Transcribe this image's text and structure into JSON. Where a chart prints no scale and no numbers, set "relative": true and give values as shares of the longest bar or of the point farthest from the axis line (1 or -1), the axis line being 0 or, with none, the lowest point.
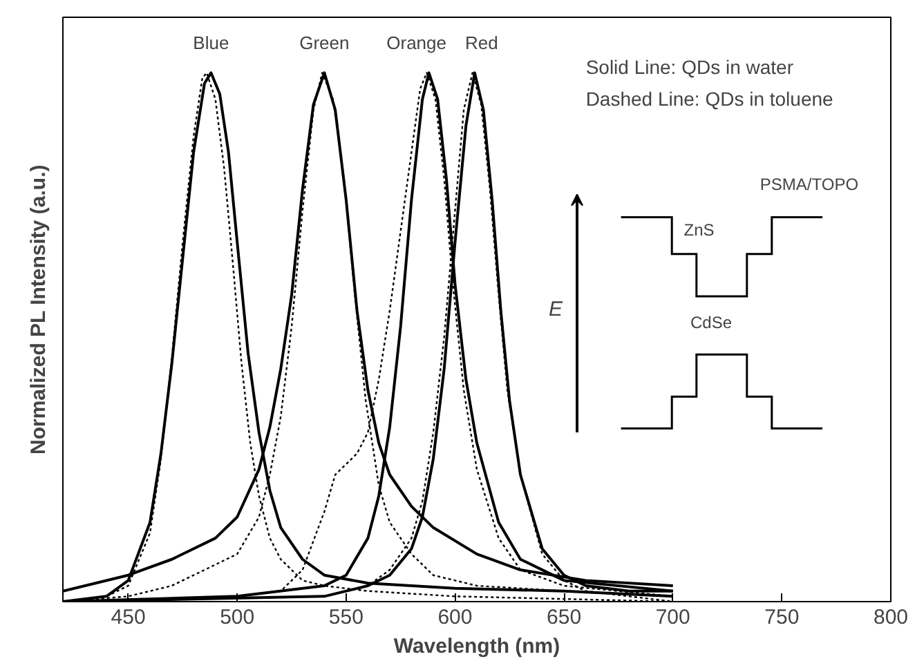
{
  "chart_data": {
    "type": "line",
    "xlabel": "Wavelength (nm)",
    "ylabel": "Normalized PL Intensity (a.u.)",
    "relative": true,
    "xlim": [
      420,
      800
    ],
    "xticks": [
      450,
      500,
      550,
      600,
      650,
      700,
      750,
      800
    ],
    "tick_labels": "x",
    "grid": false,
    "marker": "none",
    "annotations": [
      "Solid Line: QDs in water",
      "Dashed Line: QDs in toluene",
      "PSMA/TOPO",
      "ZnS",
      "CdSe",
      "E"
    ],
    "series": [
      {
        "name": "Blue",
        "color": "#000000",
        "line_style": "solid",
        "x": [
          420,
          440,
          450,
          460,
          465,
          470,
          475,
          480,
          485,
          488,
          492,
          496,
          500,
          505,
          510,
          515,
          520,
          530,
          540,
          560,
          600,
          650,
          700
        ],
        "values": [
          0.0,
          0.01,
          0.04,
          0.15,
          0.28,
          0.45,
          0.65,
          0.85,
          0.98,
          1.0,
          0.96,
          0.85,
          0.68,
          0.47,
          0.32,
          0.21,
          0.14,
          0.08,
          0.05,
          0.035,
          0.025,
          0.02,
          0.01
        ]
      },
      {
        "color": "#000000",
        "line_style": "dashed",
        "x": [
          420,
          440,
          450,
          460,
          465,
          470,
          475,
          480,
          484,
          486,
          490,
          494,
          498,
          502,
          506,
          510,
          515,
          520,
          530,
          540,
          560,
          600,
          700
        ],
        "values": [
          0.0,
          0.01,
          0.03,
          0.13,
          0.27,
          0.46,
          0.68,
          0.88,
          0.99,
          1.0,
          0.95,
          0.82,
          0.64,
          0.45,
          0.3,
          0.2,
          0.12,
          0.08,
          0.04,
          0.03,
          0.02,
          0.01,
          0.0
        ]
      },
      {
        "name": "Green",
        "color": "#000000",
        "line_style": "solid",
        "x": [
          420,
          450,
          470,
          490,
          500,
          510,
          515,
          520,
          525,
          530,
          535,
          540,
          545,
          550,
          555,
          560,
          565,
          570,
          580,
          590,
          610,
          630,
          660,
          700
        ],
        "values": [
          0.02,
          0.05,
          0.08,
          0.12,
          0.16,
          0.25,
          0.33,
          0.44,
          0.58,
          0.78,
          0.94,
          1.0,
          0.93,
          0.76,
          0.55,
          0.4,
          0.3,
          0.24,
          0.18,
          0.14,
          0.09,
          0.06,
          0.04,
          0.03
        ]
      },
      {
        "color": "#000000",
        "line_style": "dashed",
        "x": [
          420,
          450,
          470,
          490,
          500,
          510,
          515,
          520,
          525,
          530,
          535,
          539,
          544,
          549,
          554,
          559,
          565,
          570,
          580,
          590,
          610,
          650,
          700
        ],
        "values": [
          0.0,
          0.01,
          0.03,
          0.07,
          0.09,
          0.16,
          0.24,
          0.35,
          0.52,
          0.74,
          0.93,
          1.0,
          0.95,
          0.8,
          0.58,
          0.38,
          0.22,
          0.15,
          0.09,
          0.05,
          0.03,
          0.02,
          0.01
        ]
      },
      {
        "name": "Orange",
        "color": "#000000",
        "line_style": "solid",
        "x": [
          420,
          500,
          540,
          550,
          560,
          565,
          570,
          575,
          580,
          585,
          588,
          592,
          596,
          600,
          605,
          610,
          620,
          630,
          650,
          700
        ],
        "values": [
          0.0,
          0.01,
          0.03,
          0.05,
          0.12,
          0.2,
          0.33,
          0.52,
          0.76,
          0.95,
          1.0,
          0.95,
          0.8,
          0.6,
          0.42,
          0.3,
          0.15,
          0.08,
          0.04,
          0.02
        ]
      },
      {
        "color": "#000000",
        "line_style": "dashed",
        "x": [
          420,
          500,
          520,
          530,
          540,
          545,
          555,
          560,
          565,
          570,
          575,
          580,
          584,
          587,
          591,
          595,
          599,
          604,
          610,
          620,
          630,
          650,
          700
        ],
        "values": [
          0.0,
          0.01,
          0.02,
          0.06,
          0.17,
          0.24,
          0.28,
          0.32,
          0.42,
          0.55,
          0.7,
          0.85,
          0.97,
          1.0,
          0.95,
          0.8,
          0.6,
          0.4,
          0.25,
          0.12,
          0.06,
          0.03,
          0.01
        ]
      },
      {
        "name": "Red",
        "color": "#000000",
        "line_style": "solid",
        "x": [
          420,
          540,
          560,
          570,
          580,
          585,
          590,
          595,
          600,
          605,
          609,
          613,
          617,
          621,
          625,
          630,
          640,
          650,
          660,
          680,
          700
        ],
        "values": [
          0.0,
          0.01,
          0.03,
          0.05,
          0.1,
          0.16,
          0.27,
          0.44,
          0.68,
          0.9,
          1.0,
          0.93,
          0.76,
          0.55,
          0.38,
          0.24,
          0.1,
          0.05,
          0.03,
          0.02,
          0.02
        ]
      },
      {
        "color": "#000000",
        "line_style": "dashed",
        "x": [
          420,
          540,
          560,
          570,
          580,
          585,
          590,
          595,
          600,
          604,
          608,
          612,
          616,
          620,
          624,
          630,
          640,
          650,
          660,
          680,
          700
        ],
        "values": [
          0.0,
          0.01,
          0.03,
          0.06,
          0.12,
          0.19,
          0.32,
          0.5,
          0.74,
          0.93,
          1.0,
          0.94,
          0.78,
          0.58,
          0.4,
          0.24,
          0.09,
          0.04,
          0.02,
          0.01,
          0.0
        ]
      }
    ]
  }
}
